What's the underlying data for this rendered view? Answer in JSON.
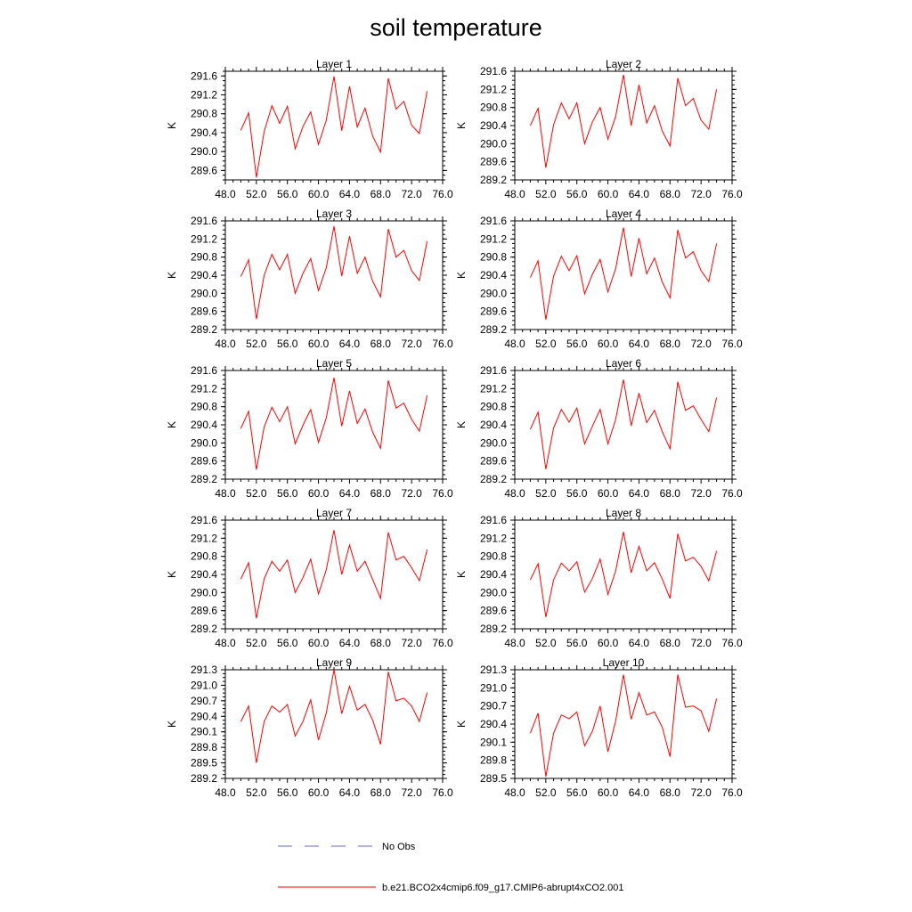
{
  "title": "soil temperature",
  "colors": {
    "model": "#ff0000",
    "obs": "#6b6bd6",
    "axis": "#000000"
  },
  "legend": [
    {
      "label": "No Obs",
      "style": "dashed",
      "color": "#6b6bd6"
    },
    {
      "label": "b.e21.BCO2x4cmip6.f09_g17.CMIP6-abrupt4xCO2.001",
      "style": "solid",
      "color": "#ff0000"
    }
  ],
  "chart_data": [
    {
      "type": "line",
      "title": "Layer 1",
      "ylabel": "K",
      "xlim": [
        48,
        76
      ],
      "ylim": [
        289.4,
        291.7
      ],
      "xticks": [
        "48.0",
        "52.0",
        "56.0",
        "60.0",
        "64.0",
        "68.0",
        "72.0",
        "76.0"
      ],
      "yticks": [
        "289.6",
        "290.0",
        "290.4",
        "290.8",
        "291.2",
        "291.6"
      ],
      "x": [
        50,
        51,
        52,
        53,
        54,
        55,
        56,
        57,
        58,
        59,
        60,
        61,
        62,
        63,
        64,
        65,
        66,
        67,
        68,
        69,
        70,
        71,
        72,
        73,
        74
      ],
      "series": [
        {
          "values": [
            290.45,
            290.82,
            289.45,
            290.42,
            290.97,
            290.6,
            290.96,
            290.06,
            290.53,
            290.84,
            290.15,
            290.66,
            291.59,
            290.44,
            291.38,
            290.52,
            290.92,
            290.32,
            289.99,
            291.55,
            290.9,
            291.06,
            290.56,
            290.38,
            291.28
          ]
        }
      ]
    },
    {
      "type": "line",
      "title": "Layer 2",
      "ylabel": "K",
      "xlim": [
        48,
        76
      ],
      "ylim": [
        289.2,
        291.6
      ],
      "xticks": [
        "48.0",
        "52.0",
        "56.0",
        "60.0",
        "64.0",
        "68.0",
        "72.0",
        "76.0"
      ],
      "yticks": [
        "289.2",
        "289.6",
        "290.0",
        "290.4",
        "290.8",
        "291.2",
        "291.6"
      ],
      "x": [
        50,
        51,
        52,
        53,
        54,
        55,
        56,
        57,
        58,
        59,
        60,
        61,
        62,
        63,
        64,
        65,
        66,
        67,
        68,
        69,
        70,
        71,
        72,
        73,
        74
      ],
      "series": [
        {
          "values": [
            290.4,
            290.78,
            289.47,
            290.42,
            290.9,
            290.55,
            290.9,
            290.0,
            290.48,
            290.8,
            290.1,
            290.6,
            291.52,
            290.4,
            291.3,
            290.46,
            290.84,
            290.28,
            289.95,
            291.45,
            290.84,
            291.0,
            290.52,
            290.32,
            291.2
          ]
        }
      ]
    },
    {
      "type": "line",
      "title": "Layer 3",
      "ylabel": "K",
      "xlim": [
        48,
        76
      ],
      "ylim": [
        289.2,
        291.6
      ],
      "xticks": [
        "48.0",
        "52.0",
        "56.0",
        "60.0",
        "64.0",
        "68.0",
        "72.0",
        "76.0"
      ],
      "yticks": [
        "289.2",
        "289.6",
        "290.0",
        "290.4",
        "290.8",
        "291.2",
        "291.6"
      ],
      "x": [
        50,
        51,
        52,
        53,
        54,
        55,
        56,
        57,
        58,
        59,
        60,
        61,
        62,
        63,
        64,
        65,
        66,
        67,
        68,
        69,
        70,
        71,
        72,
        73,
        74
      ],
      "series": [
        {
          "values": [
            290.37,
            290.74,
            289.43,
            290.4,
            290.86,
            290.52,
            290.86,
            290.0,
            290.44,
            290.77,
            290.06,
            290.56,
            291.48,
            290.38,
            291.26,
            290.44,
            290.8,
            290.26,
            289.92,
            291.42,
            290.8,
            290.95,
            290.5,
            290.28,
            291.15
          ]
        }
      ]
    },
    {
      "type": "line",
      "title": "Layer 4",
      "ylabel": "K",
      "xlim": [
        48,
        76
      ],
      "ylim": [
        289.2,
        291.6
      ],
      "xticks": [
        "48.0",
        "52.0",
        "56.0",
        "60.0",
        "64.0",
        "68.0",
        "72.0",
        "76.0"
      ],
      "yticks": [
        "289.2",
        "289.6",
        "290.0",
        "290.4",
        "290.8",
        "291.2",
        "291.6"
      ],
      "x": [
        50,
        51,
        52,
        53,
        54,
        55,
        56,
        57,
        58,
        59,
        60,
        61,
        62,
        63,
        64,
        65,
        66,
        67,
        68,
        69,
        70,
        71,
        72,
        73,
        74
      ],
      "series": [
        {
          "values": [
            290.35,
            290.72,
            289.42,
            290.38,
            290.82,
            290.5,
            290.83,
            289.99,
            290.42,
            290.75,
            290.03,
            290.55,
            291.45,
            290.37,
            291.22,
            290.43,
            290.78,
            290.25,
            289.9,
            291.4,
            290.78,
            290.92,
            290.5,
            290.26,
            291.1
          ]
        }
      ]
    },
    {
      "type": "line",
      "title": "Layer 5",
      "ylabel": "K",
      "xlim": [
        48,
        76
      ],
      "ylim": [
        289.2,
        291.6
      ],
      "xticks": [
        "48.0",
        "52.0",
        "56.0",
        "60.0",
        "64.0",
        "68.0",
        "72.0",
        "76.0"
      ],
      "yticks": [
        "289.2",
        "289.6",
        "290.0",
        "290.4",
        "290.8",
        "291.2",
        "291.6"
      ],
      "x": [
        50,
        51,
        52,
        53,
        54,
        55,
        56,
        57,
        58,
        59,
        60,
        61,
        62,
        63,
        64,
        65,
        66,
        67,
        68,
        69,
        70,
        71,
        72,
        73,
        74
      ],
      "series": [
        {
          "values": [
            290.32,
            290.7,
            289.41,
            290.35,
            290.79,
            290.47,
            290.8,
            289.98,
            290.39,
            290.74,
            290.01,
            290.55,
            291.44,
            290.37,
            291.15,
            290.43,
            290.75,
            290.23,
            289.88,
            291.38,
            290.77,
            290.88,
            290.52,
            290.26,
            291.05
          ]
        }
      ]
    },
    {
      "type": "line",
      "title": "Layer 6",
      "ylabel": "K",
      "xlim": [
        48,
        76
      ],
      "ylim": [
        289.2,
        291.6
      ],
      "xticks": [
        "48.0",
        "52.0",
        "56.0",
        "60.0",
        "64.0",
        "68.0",
        "72.0",
        "76.0"
      ],
      "yticks": [
        "289.2",
        "289.6",
        "290.0",
        "290.4",
        "290.8",
        "291.2",
        "291.6"
      ],
      "x": [
        50,
        51,
        52,
        53,
        54,
        55,
        56,
        57,
        58,
        59,
        60,
        61,
        62,
        63,
        64,
        65,
        66,
        67,
        68,
        69,
        70,
        71,
        72,
        73,
        74
      ],
      "series": [
        {
          "values": [
            290.3,
            290.68,
            289.42,
            290.33,
            290.74,
            290.46,
            290.77,
            289.98,
            290.37,
            290.74,
            289.98,
            290.52,
            291.4,
            290.38,
            291.1,
            290.45,
            290.72,
            290.25,
            289.87,
            291.35,
            290.72,
            290.82,
            290.52,
            290.25,
            291.0
          ]
        }
      ]
    },
    {
      "type": "line",
      "title": "Layer 7",
      "ylabel": "K",
      "xlim": [
        48,
        76
      ],
      "ylim": [
        289.2,
        291.6
      ],
      "xticks": [
        "48.0",
        "52.0",
        "56.0",
        "60.0",
        "64.0",
        "68.0",
        "72.0",
        "76.0"
      ],
      "yticks": [
        "289.2",
        "289.6",
        "290.0",
        "290.4",
        "290.8",
        "291.2",
        "291.6"
      ],
      "x": [
        50,
        51,
        52,
        53,
        54,
        55,
        56,
        57,
        58,
        59,
        60,
        61,
        62,
        63,
        64,
        65,
        66,
        67,
        68,
        69,
        70,
        71,
        72,
        73,
        74
      ],
      "series": [
        {
          "values": [
            290.3,
            290.66,
            289.43,
            290.3,
            290.69,
            290.47,
            290.72,
            290.0,
            290.33,
            290.74,
            289.97,
            290.5,
            291.38,
            290.4,
            291.05,
            290.47,
            290.69,
            290.28,
            289.87,
            291.33,
            290.72,
            290.8,
            290.55,
            290.26,
            290.95
          ]
        }
      ]
    },
    {
      "type": "line",
      "title": "Layer 8",
      "ylabel": "K",
      "xlim": [
        48,
        76
      ],
      "ylim": [
        289.2,
        291.6
      ],
      "xticks": [
        "48.0",
        "52.0",
        "56.0",
        "60.0",
        "64.0",
        "68.0",
        "72.0",
        "76.0"
      ],
      "yticks": [
        "289.2",
        "289.6",
        "290.0",
        "290.4",
        "290.8",
        "291.2",
        "291.6"
      ],
      "x": [
        50,
        51,
        52,
        53,
        54,
        55,
        56,
        57,
        58,
        59,
        60,
        61,
        62,
        63,
        64,
        65,
        66,
        67,
        68,
        69,
        70,
        71,
        72,
        73,
        74
      ],
      "series": [
        {
          "values": [
            290.28,
            290.64,
            289.46,
            290.28,
            290.65,
            290.48,
            290.68,
            290.01,
            290.31,
            290.74,
            289.96,
            290.48,
            291.34,
            290.44,
            291.02,
            290.48,
            290.66,
            290.3,
            289.87,
            291.3,
            290.7,
            290.78,
            290.58,
            290.26,
            290.92
          ]
        }
      ]
    },
    {
      "type": "line",
      "title": "Layer 9",
      "ylabel": "K",
      "xlim": [
        48,
        76
      ],
      "ylim": [
        289.2,
        291.3
      ],
      "xticks": [
        "48.0",
        "52.0",
        "56.0",
        "60.0",
        "64.0",
        "68.0",
        "72.0",
        "76.0"
      ],
      "yticks": [
        "289.2",
        "289.5",
        "289.8",
        "290.1",
        "290.4",
        "290.7",
        "291.0",
        "291.3"
      ],
      "x": [
        50,
        51,
        52,
        53,
        54,
        55,
        56,
        57,
        58,
        59,
        60,
        61,
        62,
        63,
        64,
        65,
        66,
        67,
        68,
        69,
        70,
        71,
        72,
        73,
        74
      ],
      "series": [
        {
          "values": [
            290.3,
            290.6,
            289.5,
            290.3,
            290.6,
            290.48,
            290.63,
            290.02,
            290.3,
            290.72,
            289.94,
            290.46,
            291.3,
            290.45,
            290.98,
            290.52,
            290.63,
            290.32,
            289.86,
            291.26,
            290.7,
            290.75,
            290.6,
            290.3,
            290.86
          ]
        }
      ]
    },
    {
      "type": "line",
      "title": "Layer 10",
      "ylabel": "K",
      "xlim": [
        48,
        76
      ],
      "ylim": [
        289.5,
        291.3
      ],
      "xticks": [
        "48.0",
        "52.0",
        "56.0",
        "60.0",
        "64.0",
        "68.0",
        "72.0",
        "76.0"
      ],
      "yticks": [
        "289.5",
        "289.8",
        "290.1",
        "290.4",
        "290.7",
        "291.0",
        "291.3"
      ],
      "x": [
        50,
        51,
        52,
        53,
        54,
        55,
        56,
        57,
        58,
        59,
        60,
        61,
        62,
        63,
        64,
        65,
        66,
        67,
        68,
        69,
        70,
        71,
        72,
        73,
        74
      ],
      "series": [
        {
          "values": [
            290.25,
            290.58,
            289.53,
            290.25,
            290.55,
            290.49,
            290.6,
            290.04,
            290.28,
            290.7,
            289.94,
            290.45,
            291.22,
            290.48,
            290.92,
            290.55,
            290.6,
            290.35,
            289.86,
            291.22,
            290.68,
            290.7,
            290.62,
            290.28,
            290.82
          ]
        }
      ]
    }
  ]
}
